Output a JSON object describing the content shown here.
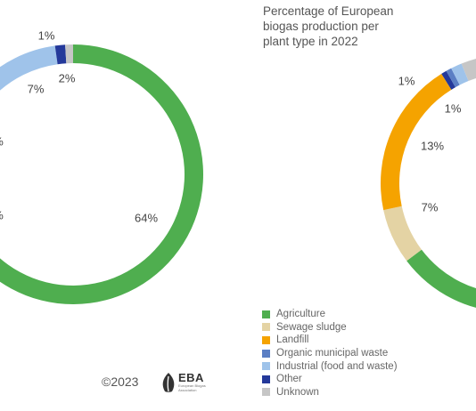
{
  "chart_data": [
    {
      "type": "pie",
      "donut": true,
      "title": "",
      "slices": [
        {
          "label": "Agriculture",
          "value": 64,
          "display": "64%"
        },
        {
          "label": "Sewage sludge",
          "value": 0,
          "display": ""
        },
        {
          "label": "Landfill",
          "value": 0,
          "display": ""
        },
        {
          "label": "Organic municipal waste",
          "value": 0,
          "display": ""
        },
        {
          "label": "Industrial (food and waste)",
          "value": 7,
          "display": "7%"
        },
        {
          "label": "Other",
          "value": 1,
          "display": "1%"
        },
        {
          "label": "Unknown",
          "value": 2,
          "display": "2%"
        }
      ],
      "partial_labels": [
        "%",
        "%"
      ]
    },
    {
      "type": "pie",
      "donut": true,
      "title": "Percentage of European biogas production per plant type in 2022",
      "slices": [
        {
          "label": "Agriculture",
          "value": 0,
          "display": ""
        },
        {
          "label": "Sewage sludge",
          "value": 7,
          "display": "7%"
        },
        {
          "label": "Landfill",
          "value": 13,
          "display": "13%"
        },
        {
          "label": "Organic municipal waste",
          "value": 1,
          "display": "1%"
        },
        {
          "label": "Industrial (food and waste)",
          "value": 1,
          "display": "1%"
        },
        {
          "label": "Other",
          "value": 0,
          "display": ""
        },
        {
          "label": "Unknown",
          "value": 0,
          "display": ""
        }
      ]
    }
  ],
  "title_lines": [
    "Percentage of European",
    "biogas production per",
    "plant type in 2022"
  ],
  "legend": [
    {
      "label": "Agriculture",
      "color": "#4fae4f"
    },
    {
      "label": "Sewage sludge",
      "color": "#e4d3a4"
    },
    {
      "label": "Landfill",
      "color": "#f5a300"
    },
    {
      "label": "Organic municipal waste",
      "color": "#5b7fc4"
    },
    {
      "label": "Industrial (food and waste)",
      "color": "#9fc3ea"
    },
    {
      "label": "Other",
      "color": "#24399a"
    },
    {
      "label": "Unknown",
      "color": "#c6c6c6"
    }
  ],
  "footer": {
    "copyright": "©2023",
    "logo_text": "EBA",
    "logo_sub": "European Biogas Association"
  }
}
